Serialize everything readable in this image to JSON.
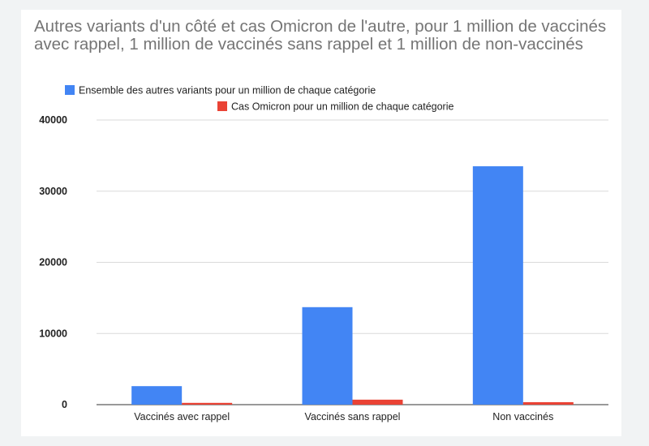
{
  "chart_data": {
    "type": "bar",
    "title": "Autres variants d'un côté et cas Omicron de l'autre, pour 1 million de vaccinés avec rappel, 1 million de vaccinés sans rappel et 1 million de non-vaccinés",
    "categories": [
      "Vaccinés avec rappel",
      "Vaccinés sans rappel",
      "Non vaccinés"
    ],
    "series": [
      {
        "name": "Ensemble des autres variants pour un million de chaque catégorie",
        "color": "#4285f4",
        "values": [
          2600,
          13700,
          33500
        ]
      },
      {
        "name": "Cas Omicron pour un million de chaque catégorie",
        "color": "#ea4335",
        "values": [
          250,
          700,
          350
        ]
      }
    ],
    "y_ticks": [
      "0",
      "10000",
      "20000",
      "30000",
      "40000"
    ],
    "ylim": [
      0,
      40000
    ],
    "xlabel": "",
    "ylabel": "",
    "grid": true,
    "legend_position": "top"
  }
}
